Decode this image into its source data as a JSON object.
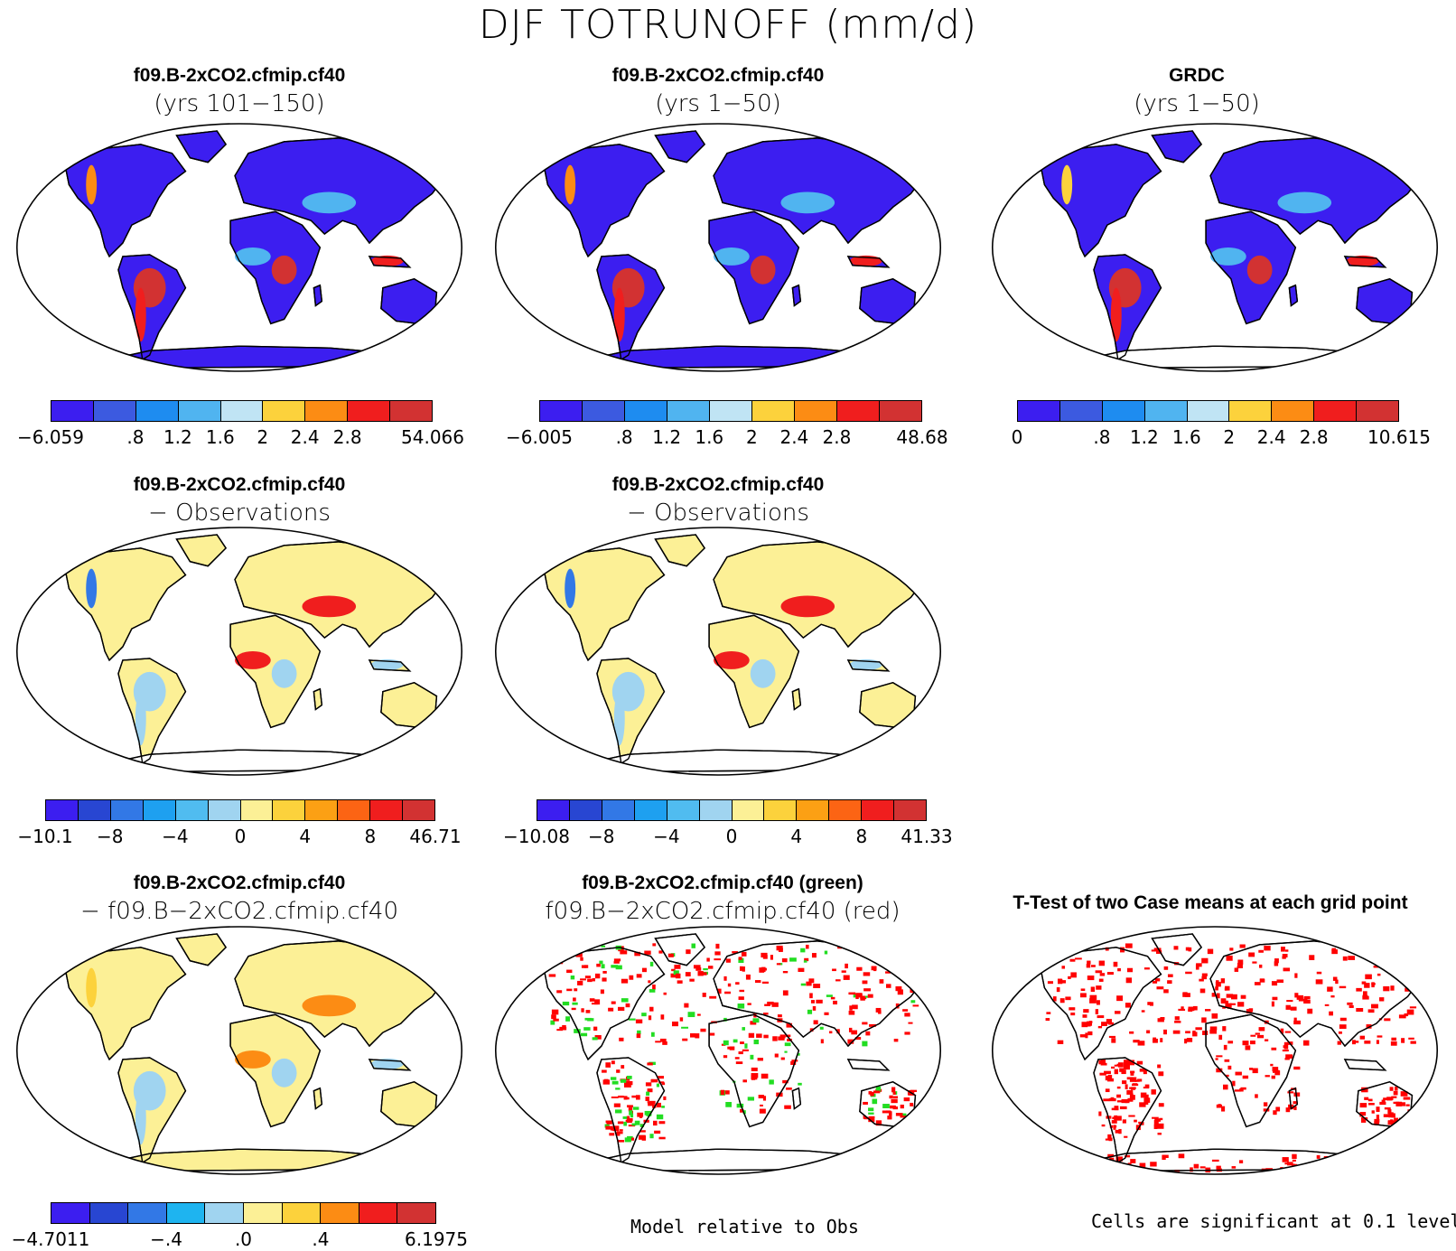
{
  "title": "DJF TOTRUNOFF (mm/d)",
  "panels": [
    {
      "line1": "f09.B-2xCO2.cfmip.cf40",
      "line2": "(yrs 101−150)",
      "style": "abs"
    },
    {
      "line1": "f09.B-2xCO2.cfmip.cf40",
      "line2": "(yrs 1−50)",
      "style": "abs"
    },
    {
      "line1": "GRDC",
      "line2": "(yrs 1−50)",
      "style": "obs"
    },
    {
      "line1": "f09.B-2xCO2.cfmip.cf40",
      "line2": "− Observations",
      "style": "diff"
    },
    {
      "line1": "f09.B-2xCO2.cfmip.cf40",
      "line2": "− Observations",
      "style": "diff"
    },
    {
      "line1": "f09.B-2xCO2.cfmip.cf40",
      "line2": "− f09.B−2xCO2.cfmip.cf40",
      "style": "diff2"
    },
    {
      "line1": "f09.B-2xCO2.cfmip.cf40 (green)",
      "line2": "f09.B−2xCO2.cfmip.cf40 (red)",
      "style": "rel"
    },
    {
      "line1": "T-Test of two Case means at each grid point",
      "line2": "",
      "style": "ttest"
    }
  ],
  "colorbars": [
    {
      "colors": [
        "#3c1ef0",
        "#3c5ae0",
        "#1e8cf0",
        "#50b4f0",
        "#c0e4f4",
        "#fcd23c",
        "#fc8c14",
        "#f01e1e",
        "#d23232"
      ],
      "ticks": [
        "−6.059",
        ".8",
        "1.2",
        "1.6",
        "2",
        "2.4",
        "2.8",
        "54.066"
      ]
    },
    {
      "colors": [
        "#3c1ef0",
        "#3c5ae0",
        "#1e8cf0",
        "#50b4f0",
        "#c0e4f4",
        "#fcd23c",
        "#fc8c14",
        "#f01e1e",
        "#d23232"
      ],
      "ticks": [
        "−6.005",
        ".8",
        "1.2",
        "1.6",
        "2",
        "2.4",
        "2.8",
        "48.68"
      ]
    },
    {
      "colors": [
        "#3c1ef0",
        "#3c5ae0",
        "#1e8cf0",
        "#50b4f0",
        "#c0e4f4",
        "#fcd23c",
        "#fc8c14",
        "#f01e1e",
        "#d23232"
      ],
      "ticks": [
        "0",
        ".8",
        "1.2",
        "1.6",
        "2",
        "2.4",
        "2.8",
        "10.615"
      ]
    },
    {
      "colors": [
        "#3c1ef0",
        "#2846d2",
        "#3278e6",
        "#1ea0f0",
        "#50bcf0",
        "#a0d4f0",
        "#fcf096",
        "#fcd23c",
        "#fca014",
        "#fc6414",
        "#f01e1e",
        "#d23232"
      ],
      "ticks": [
        "−10.1",
        "−8",
        "−4",
        "0",
        "4",
        "8",
        "46.71"
      ]
    },
    {
      "colors": [
        "#3c1ef0",
        "#2846d2",
        "#3278e6",
        "#1ea0f0",
        "#50bcf0",
        "#a0d4f0",
        "#fcf096",
        "#fcd23c",
        "#fca014",
        "#fc6414",
        "#f01e1e",
        "#d23232"
      ],
      "ticks": [
        "−10.08",
        "−8",
        "−4",
        "0",
        "4",
        "8",
        "41.33"
      ]
    },
    {
      "colors": [
        "#3c1ef0",
        "#2846d2",
        "#3278e6",
        "#1eb4f0",
        "#a0d4f0",
        "#fcf096",
        "#fcd23c",
        "#fc8c14",
        "#f01e1e",
        "#d23232"
      ],
      "ticks": [
        "−4.7011",
        "−.4",
        ".0",
        ".4",
        "6.1975"
      ]
    }
  ],
  "footnotes": {
    "relative": "Model relative to Obs",
    "significance": "Cells are significant at 0.1 level"
  }
}
